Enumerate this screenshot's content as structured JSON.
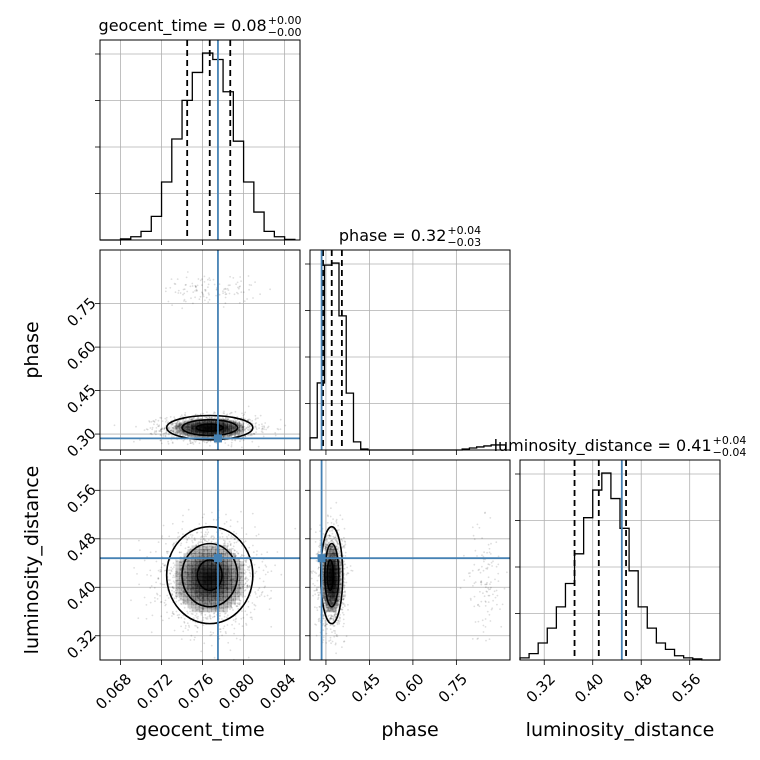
{
  "chart_data": {
    "type": "corner",
    "parameters": [
      {
        "name": "geocent_time",
        "axis_label": "geocent_time",
        "range": [
          0.066,
          0.0855
        ],
        "ticks": [
          "0.068",
          "0.072",
          "0.076",
          "0.080",
          "0.084"
        ],
        "tick_values": [
          0.068,
          0.072,
          0.076,
          0.08,
          0.084
        ],
        "truth": 0.0775,
        "median": 0.0767,
        "quantiles": [
          0.0745,
          0.0767,
          0.0787
        ],
        "title": {
          "text": "geocent_time = 0.08",
          "sup": "+0.00",
          "sub": "−0.00"
        },
        "hist": {
          "edges": [
            0.066,
            0.067,
            0.068,
            0.069,
            0.07,
            0.071,
            0.072,
            0.073,
            0.074,
            0.075,
            0.076,
            0.077,
            0.078,
            0.079,
            0.08,
            0.081,
            0.082,
            0.083,
            0.084,
            0.085
          ],
          "counts": [
            0,
            0,
            0.5,
            1.5,
            4,
            11,
            27,
            47,
            65,
            78,
            87,
            84,
            69,
            46,
            27,
            13,
            4,
            1.5,
            0.3
          ]
        }
      },
      {
        "name": "phase",
        "axis_label": "phase",
        "range": [
          0.245,
          0.935
        ],
        "ticks": [
          "0.30",
          "0.45",
          "0.60",
          "0.75"
        ],
        "tick_values": [
          0.3,
          0.45,
          0.6,
          0.75
        ],
        "truth": 0.285,
        "median": 0.32,
        "quantiles": [
          0.29,
          0.32,
          0.355
        ],
        "title": {
          "text": "phase = 0.32",
          "sup": "+0.04",
          "sub": "−0.03"
        },
        "hist": {
          "edges": [
            0.245,
            0.27,
            0.295,
            0.32,
            0.345,
            0.37,
            0.395,
            0.42,
            0.445,
            0.47,
            0.495,
            0.52,
            0.545,
            0.57,
            0.595,
            0.62,
            0.645,
            0.67,
            0.695,
            0.72,
            0.745,
            0.77,
            0.795,
            0.82,
            0.845,
            0.87,
            0.895,
            0.92
          ],
          "counts": [
            6,
            33,
            91,
            92,
            66,
            28,
            4,
            0.5,
            0,
            0,
            0,
            0,
            0,
            0,
            0,
            0,
            0,
            0,
            0,
            0,
            0,
            0.5,
            1,
            1.5,
            2,
            2.5,
            2.5
          ]
        }
      },
      {
        "name": "luminosity_distance",
        "axis_label": "luminosity_distance",
        "range": [
          0.28,
          0.61
        ],
        "ticks": [
          "0.32",
          "0.40",
          "0.48",
          "0.56"
        ],
        "tick_values": [
          0.32,
          0.4,
          0.48,
          0.56
        ],
        "truth": 0.448,
        "median": 0.41,
        "quantiles": [
          0.37,
          0.41,
          0.455
        ],
        "title": {
          "text": "luminosity_distance = 0.41",
          "sup": "+0.04",
          "sub": "−0.04"
        },
        "hist": {
          "edges": [
            0.28,
            0.295,
            0.31,
            0.325,
            0.34,
            0.355,
            0.37,
            0.385,
            0.4,
            0.415,
            0.43,
            0.445,
            0.46,
            0.475,
            0.49,
            0.505,
            0.52,
            0.535,
            0.55,
            0.565,
            0.58,
            0.595,
            0.61
          ],
          "counts": [
            1,
            3,
            8,
            15,
            25,
            36,
            50,
            67,
            80,
            88,
            76,
            62,
            42,
            25,
            15,
            8,
            5,
            2,
            1,
            0.5,
            0,
            0
          ]
        }
      }
    ],
    "pairs": [
      {
        "x": "geocent_time",
        "y": "phase",
        "modes": [
          {
            "mx": 0.0767,
            "my": 0.32,
            "sx": 0.0023,
            "sy": 0.022,
            "weight": 0.93
          },
          {
            "mx": 0.0767,
            "my": 0.8,
            "sx": 0.0023,
            "sy": 0.025,
            "weight": 0.07
          }
        ],
        "contours": [
          {
            "cx": 0.0767,
            "cy": 0.322,
            "rx": 0.0013,
            "ry": 0.012
          },
          {
            "cx": 0.0767,
            "cy": 0.322,
            "rx": 0.0027,
            "ry": 0.027
          },
          {
            "cx": 0.0767,
            "cy": 0.322,
            "rx": 0.0042,
            "ry": 0.042
          }
        ]
      },
      {
        "x": "geocent_time",
        "y": "luminosity_distance",
        "modes": [
          {
            "mx": 0.0767,
            "my": 0.414,
            "sx": 0.0023,
            "sy": 0.038,
            "weight": 1
          }
        ],
        "contours": [
          {
            "cx": 0.0767,
            "cy": 0.42,
            "rx": 0.0012,
            "ry": 0.025
          },
          {
            "cx": 0.0767,
            "cy": 0.42,
            "rx": 0.0027,
            "ry": 0.052
          },
          {
            "cx": 0.0767,
            "cy": 0.42,
            "rx": 0.0042,
            "ry": 0.08
          }
        ]
      },
      {
        "x": "phase",
        "y": "luminosity_distance",
        "modes": [
          {
            "mx": 0.32,
            "my": 0.414,
            "sx": 0.022,
            "sy": 0.038,
            "weight": 0.93
          },
          {
            "mx": 0.85,
            "my": 0.41,
            "sx": 0.03,
            "sy": 0.05,
            "weight": 0.07
          }
        ],
        "contours": [
          {
            "cx": 0.315,
            "cy": 0.42,
            "rx": 0.011,
            "ry": 0.025
          },
          {
            "cx": 0.32,
            "cy": 0.42,
            "rx": 0.024,
            "ry": 0.052
          },
          {
            "cx": 0.32,
            "cy": 0.42,
            "rx": 0.038,
            "ry": 0.08
          }
        ]
      }
    ],
    "truth_color": "#4682b4",
    "line_color": "#000000",
    "grid_color": "#b0b0b0",
    "grid": true
  }
}
